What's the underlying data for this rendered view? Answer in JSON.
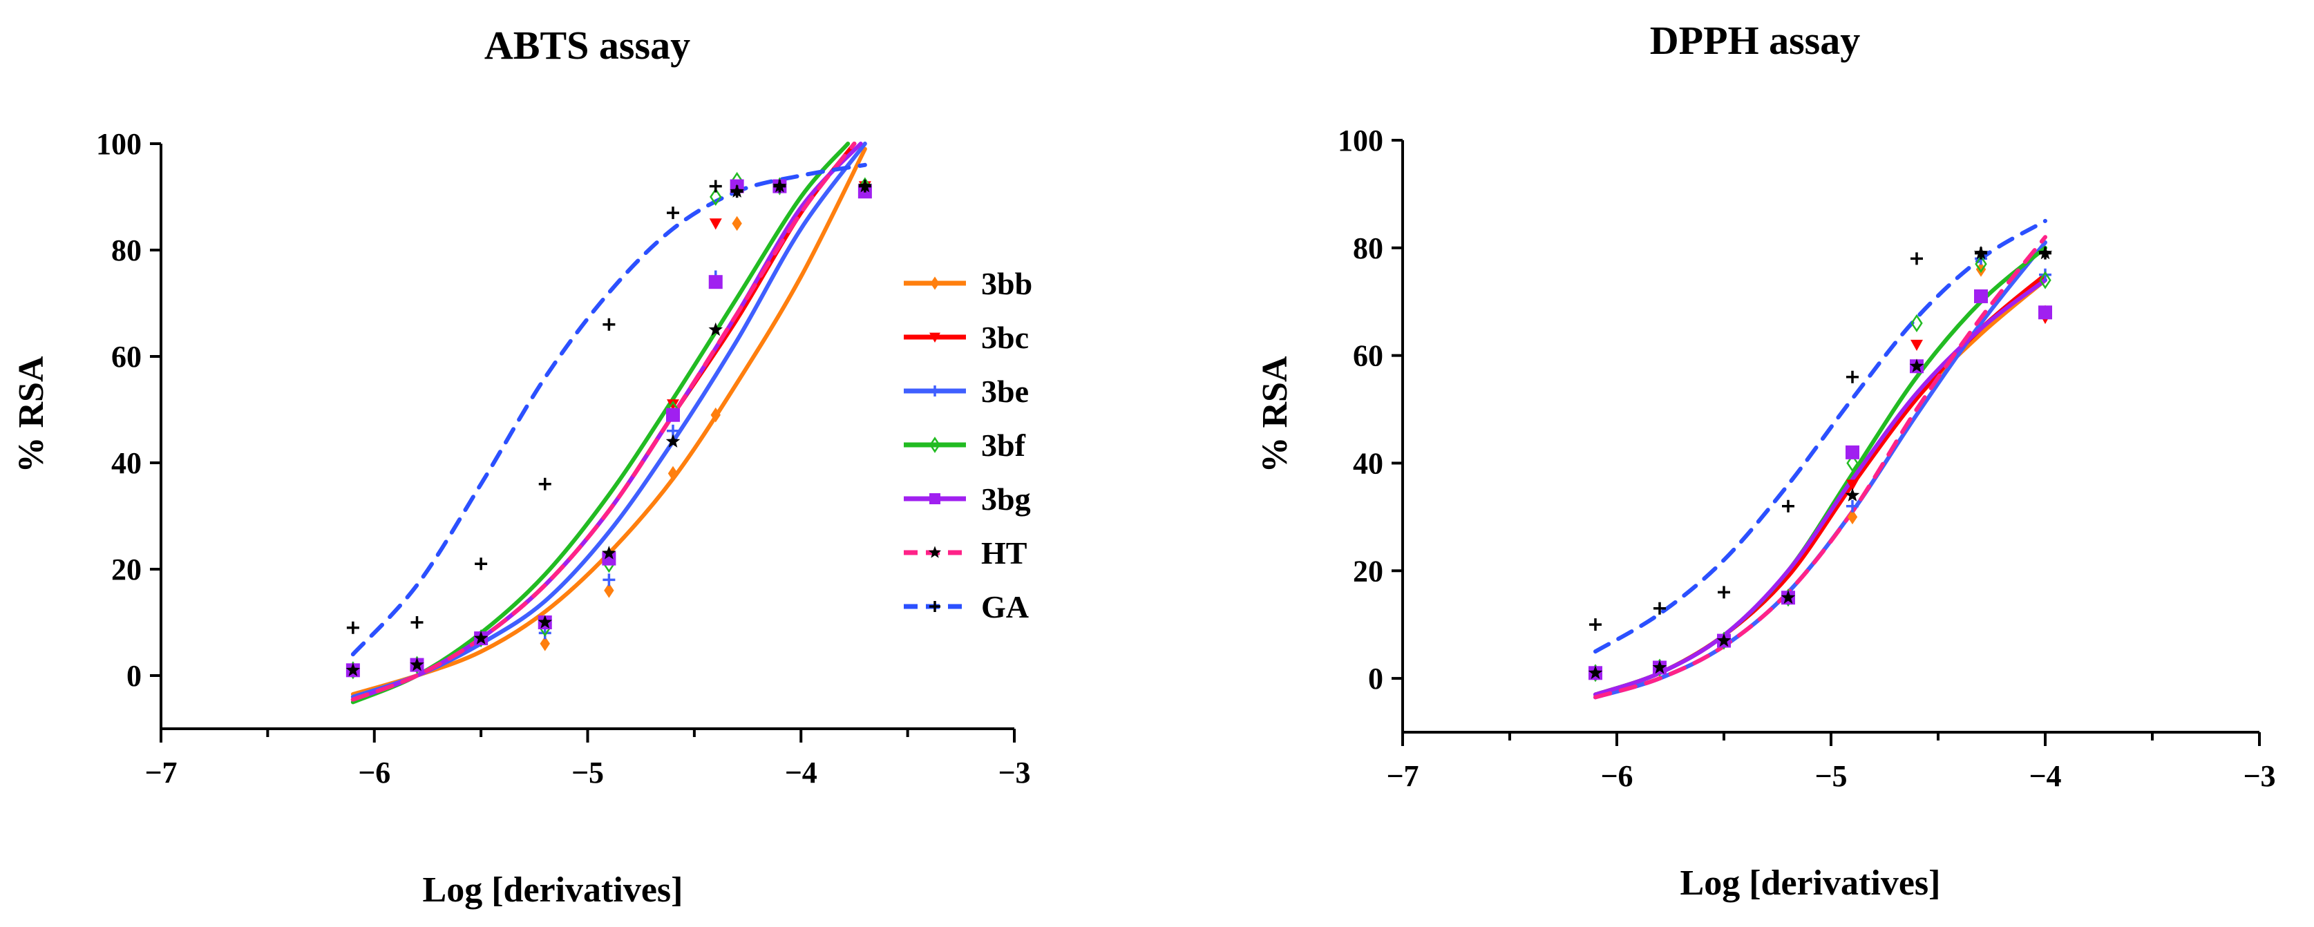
{
  "legend_items": [
    {
      "label": "3bb",
      "color": "#ff7f0e",
      "dashed": false,
      "marker": "diamond"
    },
    {
      "label": "3bc",
      "color": "#ff0000",
      "dashed": false,
      "marker": "triangle-down"
    },
    {
      "label": "3be",
      "color": "#3f5fff",
      "dashed": false,
      "marker": "plus"
    },
    {
      "label": "3bf",
      "color": "#22bb22",
      "dashed": false,
      "marker": "diamond-open"
    },
    {
      "label": "3bg",
      "color": "#a020f0",
      "dashed": false,
      "marker": "square"
    },
    {
      "label": "HT",
      "color": "#ff2288",
      "dashed": true,
      "marker": "star"
    },
    {
      "label": "GA",
      "color": "#2b50ff",
      "dashed": true,
      "marker": "plus"
    }
  ],
  "chart_data": [
    {
      "type": "line",
      "title": "ABTS assay",
      "xlabel": "Log [derivatives]",
      "ylabel": "% RSA",
      "xlim": [
        -7,
        -3
      ],
      "ylim": [
        -10,
        100
      ],
      "xticks": [
        -7,
        -6,
        -5,
        -4,
        -3
      ],
      "xticks_minor": [
        -6.5,
        -5.5,
        -4.5,
        -3.5
      ],
      "yticks": [
        0,
        20,
        40,
        60,
        80,
        100
      ],
      "grid": false,
      "legend": "right",
      "series": [
        {
          "name": "3bb",
          "curve": {
            "x": [
              -6.1,
              -5.8,
              -5.5,
              -5.2,
              -4.9,
              -4.6,
              -4.3,
              -4.0,
              -3.7
            ],
            "y": [
              -3.5,
              0,
              4.5,
              12,
              23,
              37,
              55,
              75,
              99
            ]
          },
          "points": {
            "x": [
              -6.1,
              -5.8,
              -5.5,
              -5.2,
              -4.9,
              -4.6,
              -4.4,
              -4.3,
              -4.1,
              -3.7
            ],
            "y": [
              1,
              2,
              7,
              6,
              16,
              38,
              49,
              85,
              92,
              92
            ]
          }
        },
        {
          "name": "3bc",
          "curve": {
            "x": [
              -6.1,
              -5.8,
              -5.5,
              -5.2,
              -4.9,
              -4.6,
              -4.3,
              -4.0,
              -3.75
            ],
            "y": [
              -4.5,
              0,
              7,
              17,
              31,
              49,
              67,
              87,
              100
            ]
          },
          "points": {
            "x": [
              -6.1,
              -5.8,
              -5.5,
              -5.2,
              -4.9,
              -4.6,
              -4.4,
              -4.3,
              -4.1,
              -3.7
            ],
            "y": [
              1,
              2,
              7,
              10,
              22,
              51,
              85,
              91,
              92,
              92
            ]
          }
        },
        {
          "name": "3be",
          "curve": {
            "x": [
              -6.1,
              -5.8,
              -5.5,
              -5.2,
              -4.9,
              -4.6,
              -4.3,
              -4.0,
              -3.7
            ],
            "y": [
              -4,
              0,
              6,
              14,
              27,
              44,
              63,
              84,
              100
            ]
          },
          "points": {
            "x": [
              -6.1,
              -5.8,
              -5.5,
              -5.2,
              -4.9,
              -4.6,
              -4.4,
              -4.3,
              -4.1,
              -3.7
            ],
            "y": [
              1,
              2,
              7,
              8,
              18,
              46,
              75,
              92,
              92,
              92
            ]
          }
        },
        {
          "name": "3bf",
          "curve": {
            "x": [
              -6.1,
              -5.8,
              -5.5,
              -5.2,
              -4.9,
              -4.6,
              -4.3,
              -4.0,
              -3.78
            ],
            "y": [
              -5,
              0,
              8,
              19,
              34,
              52,
              71,
              90,
              100
            ]
          },
          "points": {
            "x": [
              -6.1,
              -5.8,
              -5.5,
              -5.2,
              -4.9,
              -4.6,
              -4.4,
              -4.3,
              -4.1,
              -3.7
            ],
            "y": [
              1,
              2,
              7,
              9,
              21,
              50,
              90,
              93,
              92,
              92
            ]
          }
        },
        {
          "name": "3bg",
          "curve": {
            "x": [
              -6.1,
              -5.8,
              -5.5,
              -5.2,
              -4.9,
              -4.6,
              -4.3,
              -4.0,
              -3.72
            ],
            "y": [
              -4.5,
              0,
              7,
              17,
              31,
              49,
              68,
              88,
              100
            ]
          },
          "points": {
            "x": [
              -6.1,
              -5.8,
              -5.5,
              -5.2,
              -4.9,
              -4.6,
              -4.4,
              -4.3,
              -4.1,
              -3.7
            ],
            "y": [
              1,
              2,
              7,
              10,
              22,
              49,
              74,
              92,
              92,
              91
            ]
          }
        },
        {
          "name": "HT",
          "curve": {
            "x": [
              -6.1,
              -5.8,
              -5.5,
              -5.2,
              -4.9,
              -4.6,
              -4.3,
              -4.0,
              -3.75
            ],
            "y": [
              -4.5,
              0,
              7,
              17,
              31,
              49,
              68,
              87,
              100
            ]
          },
          "points": {
            "x": [
              -6.1,
              -5.8,
              -5.5,
              -5.2,
              -4.9,
              -4.6,
              -4.4,
              -4.3,
              -4.1,
              -3.7
            ],
            "y": [
              1,
              2,
              7,
              10,
              23,
              44,
              65,
              91,
              92,
              92
            ]
          }
        },
        {
          "name": "GA",
          "curve": {
            "x": [
              -6.1,
              -5.8,
              -5.5,
              -5.2,
              -4.9,
              -4.6,
              -4.3,
              -4.0,
              -3.7
            ],
            "y": [
              4,
              17,
              36,
              56,
              72,
              84,
              91,
              94,
              96
            ]
          },
          "points": {
            "x": [
              -6.1,
              -5.8,
              -5.5,
              -5.2,
              -4.9,
              -4.6,
              -4.4,
              -4.3,
              -4.1,
              -3.7
            ],
            "y": [
              9,
              10,
              21,
              36,
              66,
              87,
              92,
              91,
              92,
              92
            ]
          }
        }
      ]
    },
    {
      "type": "line",
      "title": "DPPH assay",
      "xlabel": "Log [derivatives]",
      "ylabel": "% RSA",
      "xlim": [
        -7,
        -3
      ],
      "ylim": [
        -10,
        100
      ],
      "xticks": [
        -7,
        -6,
        -5,
        -4,
        -3
      ],
      "xticks_minor": [
        -6.5,
        -5.5,
        -4.5,
        -3.5
      ],
      "yticks": [
        0,
        20,
        40,
        60,
        80,
        100
      ],
      "grid": false,
      "series": [
        {
          "name": "3bb",
          "curve": {
            "x": [
              -6.1,
              -5.8,
              -5.5,
              -5.2,
              -4.9,
              -4.6,
              -4.3,
              -4.0
            ],
            "y": [
              -3,
              1,
              8,
              19,
              36,
              52,
              64,
              74
            ]
          },
          "points": {
            "x": [
              -6.1,
              -5.8,
              -5.5,
              -5.2,
              -4.9,
              -4.6,
              -4.3,
              -4.0
            ],
            "y": [
              1,
              2,
              7,
              15,
              30,
              58,
              76,
              68
            ]
          }
        },
        {
          "name": "3bc",
          "curve": {
            "x": [
              -6.1,
              -5.8,
              -5.5,
              -5.2,
              -4.9,
              -4.6,
              -4.3,
              -4.0
            ],
            "y": [
              -3,
              1,
              8,
              19,
              36,
              52,
              65,
              75
            ]
          },
          "points": {
            "x": [
              -6.1,
              -5.8,
              -5.5,
              -5.2,
              -4.9,
              -4.6,
              -4.3,
              -4.0
            ],
            "y": [
              1,
              2,
              7,
              15,
              36,
              62,
              71,
              67
            ]
          }
        },
        {
          "name": "3be",
          "curve": {
            "x": [
              -6.1,
              -5.8,
              -5.5,
              -5.2,
              -4.9,
              -4.6,
              -4.3,
              -4.0
            ],
            "y": [
              -3.5,
              0,
              6,
              16,
              31,
              49,
              66,
              81
            ]
          },
          "points": {
            "x": [
              -6.1,
              -5.8,
              -5.5,
              -5.2,
              -4.9,
              -4.6,
              -4.3,
              -4.0
            ],
            "y": [
              1,
              2,
              7,
              15,
              32,
              58,
              78,
              75
            ]
          }
        },
        {
          "name": "3bf",
          "curve": {
            "x": [
              -6.1,
              -5.8,
              -5.5,
              -5.2,
              -4.9,
              -4.6,
              -4.3,
              -4.0
            ],
            "y": [
              -3,
              1,
              8,
              20,
              38,
              56,
              70,
              80
            ]
          },
          "points": {
            "x": [
              -6.1,
              -5.8,
              -5.5,
              -5.2,
              -4.9,
              -4.6,
              -4.3,
              -4.0
            ],
            "y": [
              1,
              2,
              7,
              15,
              40,
              66,
              77,
              74
            ]
          }
        },
        {
          "name": "3bg",
          "curve": {
            "x": [
              -6.1,
              -5.8,
              -5.5,
              -5.2,
              -4.9,
              -4.6,
              -4.3,
              -4.0
            ],
            "y": [
              -3,
              1,
              8,
              20,
              37,
              53,
              65,
              74
            ]
          },
          "points": {
            "x": [
              -6.1,
              -5.8,
              -5.5,
              -5.2,
              -4.9,
              -4.6,
              -4.3,
              -4.0
            ],
            "y": [
              1,
              2,
              7,
              15,
              42,
              58,
              71,
              68
            ]
          }
        },
        {
          "name": "HT",
          "curve": {
            "x": [
              -6.1,
              -5.8,
              -5.5,
              -5.2,
              -4.9,
              -4.6,
              -4.3,
              -4.0
            ],
            "y": [
              -3.5,
              0,
              6,
              16,
              31,
              50,
              67,
              82
            ]
          },
          "points": {
            "x": [
              -6.1,
              -5.8,
              -5.5,
              -5.2,
              -4.9,
              -4.6,
              -4.3,
              -4.0
            ],
            "y": [
              1,
              2,
              7,
              15,
              34,
              58,
              79,
              79
            ]
          }
        },
        {
          "name": "GA",
          "curve": {
            "x": [
              -6.1,
              -5.8,
              -5.5,
              -5.2,
              -4.9,
              -4.6,
              -4.3,
              -4.0
            ],
            "y": [
              5,
              12,
              22,
              36,
              52,
              67,
              78,
              85
            ]
          },
          "points": {
            "x": [
              -6.1,
              -5.8,
              -5.5,
              -5.2,
              -4.9,
              -4.6,
              -4.3,
              -4.0
            ],
            "y": [
              10,
              13,
              16,
              32,
              56,
              78,
              79,
              79
            ]
          }
        }
      ]
    }
  ]
}
